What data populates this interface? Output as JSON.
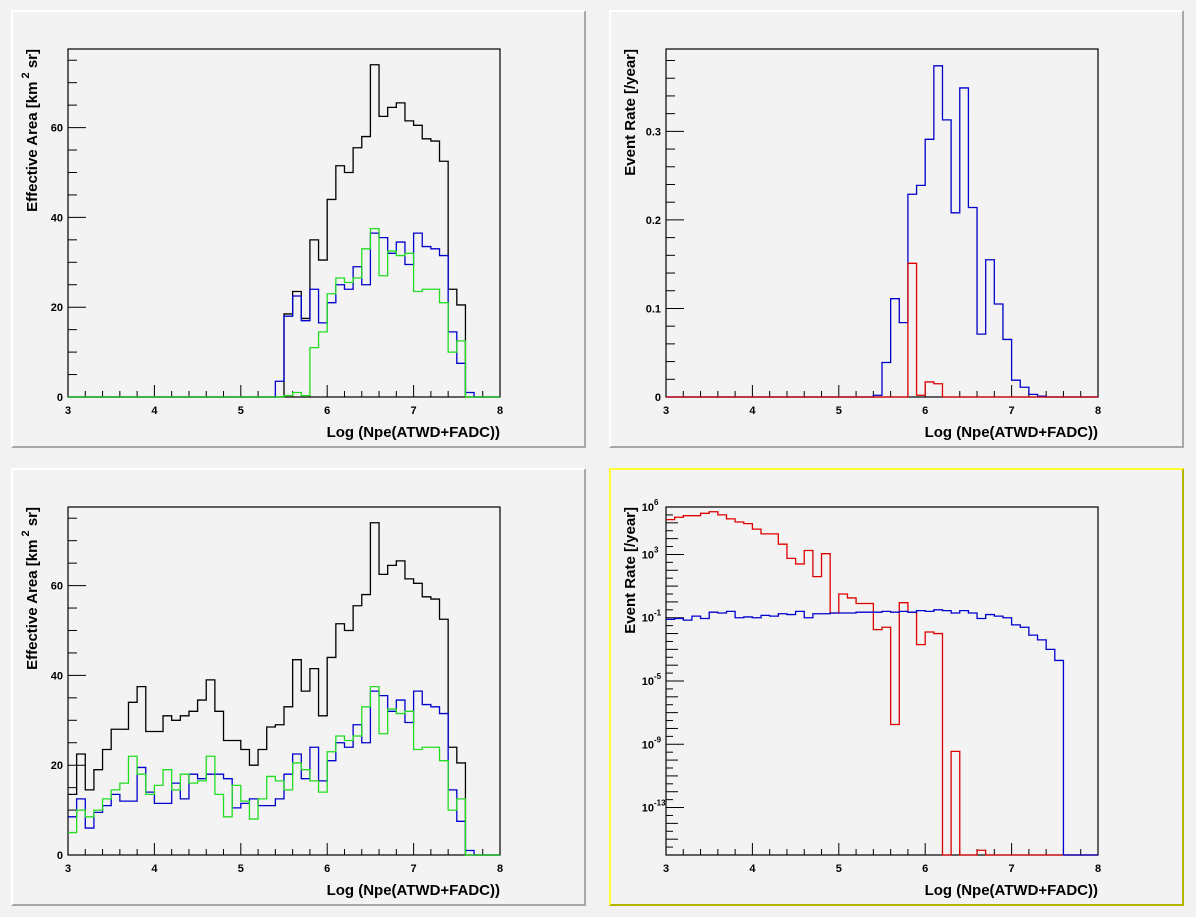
{
  "canvas": {
    "selected_pad": 3
  },
  "chart_data": [
    {
      "type": "line",
      "subtype": "step-histogram",
      "title": "",
      "xlabel": "Log (Npe(ATWD+FADC))",
      "ylabel": "Effective Area [km^2 sr]",
      "ylabel_parts": {
        "pre": "Effective Area [km",
        "sup": "2",
        "post": " sr]"
      },
      "xlim": [
        3,
        8
      ],
      "ylim": [
        0,
        77.5
      ],
      "yscale": "linear",
      "xticks": [
        3,
        4,
        5,
        6,
        7,
        8
      ],
      "xtick_labels": [
        "3",
        "4",
        "5",
        "6",
        "7",
        "8"
      ],
      "yticks": [
        0,
        20,
        40,
        60
      ],
      "ytick_labels": [
        "0",
        "20",
        "40",
        "60"
      ],
      "ymajor_step": 20,
      "yminor_step": 5,
      "bin_edges_start": 3.0,
      "bin_width": 0.1,
      "grid": false,
      "legend": "none",
      "series": [
        {
          "name": "black",
          "color": "#000000",
          "values": [
            0,
            0,
            0,
            0,
            0,
            0,
            0,
            0,
            0,
            0,
            0,
            0,
            0,
            0,
            0,
            0,
            0,
            0,
            0,
            0,
            0,
            0,
            0,
            0,
            0,
            18.5,
            23.5,
            17.5,
            35,
            30.5,
            44,
            51.5,
            50,
            55.5,
            58,
            74,
            62.5,
            64.5,
            65.5,
            61.5,
            60.5,
            57.5,
            57,
            52.5,
            24,
            20.5,
            0,
            0,
            0,
            0
          ]
        },
        {
          "name": "blue",
          "color": "#0000cc",
          "values": [
            0,
            0,
            0,
            0,
            0,
            0,
            0,
            0,
            0,
            0,
            0,
            0,
            0,
            0,
            0,
            0,
            0,
            0,
            0,
            0,
            0,
            0,
            0,
            0,
            3.5,
            18,
            22.5,
            17,
            24,
            16.5,
            21,
            25,
            24,
            29,
            25,
            36.5,
            35.5,
            32,
            34.5,
            29.5,
            36.5,
            33.5,
            33,
            31.5,
            14.5,
            7.5,
            1,
            0,
            0,
            0
          ]
        },
        {
          "name": "green",
          "color": "#22dd22",
          "values": [
            0,
            0,
            0,
            0,
            0,
            0,
            0,
            0,
            0,
            0,
            0,
            0,
            0,
            0,
            0,
            0,
            0,
            0,
            0,
            0,
            0,
            0,
            0,
            0,
            0,
            0.3,
            1,
            0.3,
            11,
            14.5,
            23,
            26.5,
            25.5,
            26.5,
            33,
            37.5,
            27,
            32.5,
            31.5,
            32,
            23.5,
            24,
            24,
            21,
            10,
            12.5,
            0,
            0,
            0,
            0
          ]
        }
      ]
    },
    {
      "type": "line",
      "subtype": "step-histogram",
      "title": "",
      "xlabel": "Log (Npe(ATWD+FADC))",
      "ylabel": "Event Rate [/year]",
      "xlim": [
        3,
        8
      ],
      "ylim": [
        0,
        0.393
      ],
      "yscale": "linear",
      "xticks": [
        3,
        4,
        5,
        6,
        7,
        8
      ],
      "xtick_labels": [
        "3",
        "4",
        "5",
        "6",
        "7",
        "8"
      ],
      "yticks": [
        0,
        0.1,
        0.2,
        0.3
      ],
      "ytick_labels": [
        "0",
        "0.1",
        "0.2",
        "0.3"
      ],
      "ymajor_step": 0.1,
      "yminor_step": 0.02,
      "bin_edges_start": 3.0,
      "bin_width": 0.1,
      "grid": false,
      "legend": "none",
      "series": [
        {
          "name": "blue",
          "color": "#0000cc",
          "values": [
            0,
            0,
            0,
            0,
            0,
            0,
            0,
            0,
            0,
            0,
            0,
            0,
            0,
            0,
            0,
            0,
            0,
            0,
            0,
            0,
            0,
            0,
            0,
            0,
            0.002,
            0.039,
            0.111,
            0.084,
            0.229,
            0.239,
            0.291,
            0.374,
            0.313,
            0.208,
            0.349,
            0.214,
            0.071,
            0.155,
            0.105,
            0.065,
            0.019,
            0.011,
            0.003,
            0.001,
            0,
            0,
            0,
            0,
            0,
            0
          ]
        },
        {
          "name": "red",
          "color": "#dd0000",
          "values": [
            0,
            0,
            0,
            0,
            0,
            0,
            0,
            0,
            0,
            0,
            0,
            0,
            0,
            0,
            0,
            0,
            0,
            0,
            0,
            0,
            0,
            0,
            0,
            0,
            0,
            0,
            0,
            0,
            0.151,
            0.002,
            0.017,
            0.015,
            0,
            0,
            0,
            0,
            0,
            0,
            0,
            0,
            0,
            0,
            0,
            0,
            0,
            0,
            0,
            0,
            0,
            0
          ]
        }
      ]
    },
    {
      "type": "line",
      "subtype": "step-histogram",
      "title": "",
      "xlabel": "Log (Npe(ATWD+FADC))",
      "ylabel": "Effective Area [km^2 sr]",
      "ylabel_parts": {
        "pre": "Effective Area [km",
        "sup": "2",
        "post": " sr]"
      },
      "xlim": [
        3,
        8
      ],
      "ylim": [
        0,
        77.5
      ],
      "yscale": "linear",
      "xticks": [
        3,
        4,
        5,
        6,
        7,
        8
      ],
      "xtick_labels": [
        "3",
        "4",
        "5",
        "6",
        "7",
        "8"
      ],
      "yticks": [
        0,
        20,
        40,
        60
      ],
      "ytick_labels": [
        "0",
        "20",
        "40",
        "60"
      ],
      "ymajor_step": 20,
      "yminor_step": 5,
      "bin_edges_start": 3.0,
      "bin_width": 0.1,
      "grid": false,
      "legend": "none",
      "series": [
        {
          "name": "black",
          "color": "#000000",
          "values": [
            13.5,
            22.5,
            14.5,
            19,
            23.5,
            28,
            28,
            34,
            37.5,
            27.5,
            27.5,
            31,
            30,
            31,
            32,
            34.5,
            39,
            32,
            25.5,
            25.5,
            23.5,
            20,
            23.5,
            28.5,
            29,
            33,
            43.5,
            36.5,
            41.5,
            31,
            44,
            51.5,
            50,
            55.5,
            58,
            74,
            62.5,
            64.5,
            65.5,
            61.5,
            60.5,
            57.5,
            57,
            52.5,
            24,
            20.5,
            0,
            0,
            0,
            0
          ]
        },
        {
          "name": "blue",
          "color": "#0000cc",
          "values": [
            8.5,
            12.5,
            6,
            9.5,
            11,
            13.5,
            12,
            12,
            19.5,
            14,
            11.5,
            11.5,
            16,
            12.5,
            18,
            17,
            18,
            18,
            17,
            10.5,
            11.5,
            12.5,
            11,
            11,
            12.5,
            18,
            22.5,
            17,
            24,
            16.5,
            21,
            25,
            24,
            29,
            25,
            36.5,
            35.5,
            32,
            34.5,
            29.5,
            36.5,
            33.5,
            33,
            31.5,
            14.5,
            7.5,
            1,
            0,
            0,
            0
          ]
        },
        {
          "name": "green",
          "color": "#22dd22",
          "values": [
            5,
            10,
            8.5,
            10,
            12.5,
            14.5,
            16,
            22,
            18,
            13.5,
            15.5,
            19,
            14.5,
            18,
            16,
            16.5,
            22,
            13.5,
            8.5,
            15.5,
            12,
            8,
            12.5,
            17.5,
            16.5,
            14.5,
            20.5,
            19,
            16.5,
            14,
            23,
            26.5,
            25.5,
            26.5,
            33,
            37.5,
            27,
            32.5,
            31.5,
            32,
            23.5,
            24,
            24,
            21,
            10,
            12.5,
            0,
            0,
            0,
            0
          ]
        }
      ]
    },
    {
      "type": "line",
      "subtype": "step-histogram",
      "title": "",
      "xlabel": "Log (Npe(ATWD+FADC))",
      "ylabel": "Event Rate [/year]",
      "xlim": [
        3,
        8
      ],
      "ylim_log10": [
        -16,
        6
      ],
      "yscale": "log",
      "xticks": [
        3,
        4,
        5,
        6,
        7,
        8
      ],
      "xtick_labels": [
        "3",
        "4",
        "5",
        "6",
        "7",
        "8"
      ],
      "yticks_log10": [
        6,
        3,
        -1,
        -5,
        -9,
        -13
      ],
      "ytick_labels": [
        {
          "base": "10",
          "exp": "6"
        },
        {
          "base": "10",
          "exp": "3"
        },
        {
          "base": "10",
          "exp": "-1"
        },
        {
          "base": "10",
          "exp": "-5"
        },
        {
          "base": "10",
          "exp": "-9"
        },
        {
          "base": "10",
          "exp": "-13"
        }
      ],
      "bin_edges_start": 3.0,
      "bin_width": 0.1,
      "grid": false,
      "legend": "none",
      "note": "values given as log10(rate); null = empty bin",
      "series": [
        {
          "name": "red",
          "color": "#dd0000",
          "log10_values": [
            5.2,
            5.35,
            5.45,
            5.45,
            5.6,
            5.7,
            5.5,
            5.25,
            5.05,
            4.95,
            4.6,
            4.3,
            4.3,
            3.65,
            2.75,
            2.4,
            3.25,
            1.6,
            3.05,
            -0.7,
            0.5,
            0.25,
            -0.1,
            -0.1,
            -1.75,
            -1.6,
            -7.75,
            -0.05,
            -0.65,
            -2.7,
            -1.9,
            -2.0,
            null,
            -9.45,
            null,
            null,
            -15.7,
            null,
            null,
            null,
            null,
            null,
            null,
            null,
            null,
            null,
            null,
            null,
            null,
            null
          ]
        },
        {
          "name": "blue",
          "color": "#0000cc",
          "log10_values": [
            -1.1,
            -1.05,
            -1.15,
            -0.9,
            -1.05,
            -0.65,
            -0.7,
            -0.6,
            -1.0,
            -0.95,
            -1.0,
            -0.85,
            -0.9,
            -0.75,
            -0.8,
            -0.6,
            -1.0,
            -0.75,
            -0.75,
            -0.7,
            -0.7,
            -0.7,
            -0.65,
            -0.65,
            -0.65,
            -0.6,
            -0.65,
            -0.6,
            -0.65,
            -0.55,
            -0.6,
            -0.5,
            -0.55,
            -0.7,
            -0.55,
            -0.7,
            -1.05,
            -0.8,
            -0.9,
            -1.0,
            -1.45,
            -1.6,
            -2.1,
            -2.4,
            -3.0,
            -3.7,
            null,
            null,
            null,
            null
          ]
        }
      ]
    }
  ]
}
